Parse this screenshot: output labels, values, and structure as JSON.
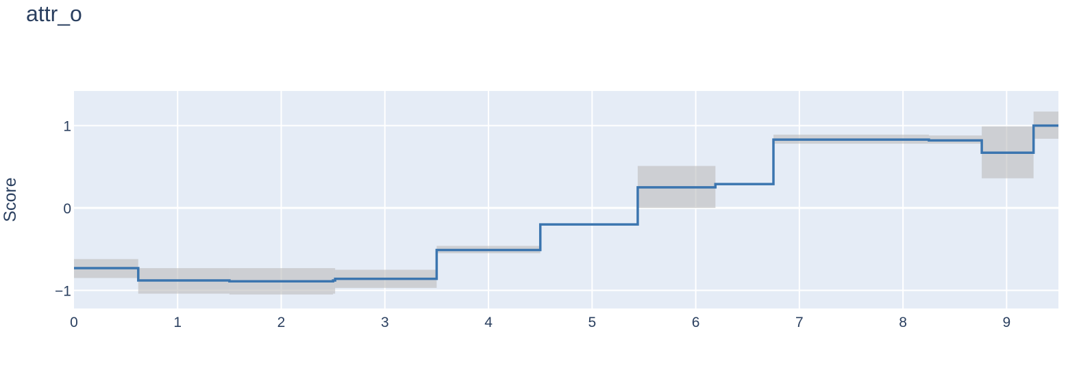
{
  "chart_data": {
    "type": "line",
    "line_shape": "step",
    "title": "attr_o",
    "xlabel": "",
    "ylabel": "Score",
    "xlim": [
      0,
      9.5
    ],
    "ylim": [
      -1.22,
      1.42
    ],
    "x_ticks": [
      0,
      1,
      2,
      3,
      4,
      5,
      6,
      7,
      8,
      9
    ],
    "y_ticks": [
      -1,
      0,
      1
    ],
    "y_tick_labels": [
      "−1",
      "0",
      "1"
    ],
    "grid": true,
    "legend": "none",
    "colors": {
      "line": "#3b75af",
      "band": "#bdbdbd",
      "plot_bg": "#e5ecf6",
      "grid": "#ffffff",
      "text": "#2a3f5f"
    },
    "series": [
      {
        "edges": [
          0,
          0.62,
          1.5,
          2.5,
          2.52,
          3.5,
          4.5,
          5.44,
          6.19,
          6.75,
          8.25,
          8.76,
          9.26,
          9.5
        ],
        "values": [
          -0.73,
          -0.88,
          -0.89,
          -0.88,
          -0.86,
          -0.51,
          -0.2,
          0.25,
          0.29,
          0.83,
          0.82,
          0.67,
          1.0
        ],
        "lower": [
          -0.85,
          -1.04,
          -1.05,
          -1.04,
          -0.97,
          -0.55,
          -0.2,
          0.0,
          0.29,
          0.78,
          0.78,
          0.36,
          0.84
        ],
        "upper": [
          -0.62,
          -0.73,
          -0.73,
          -0.73,
          -0.75,
          -0.46,
          -0.2,
          0.51,
          0.29,
          0.89,
          0.88,
          0.99,
          1.17
        ]
      }
    ]
  }
}
